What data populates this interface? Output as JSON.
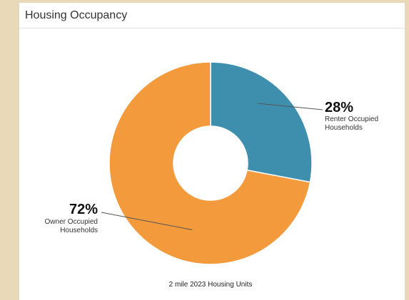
{
  "panel": {
    "title": "Housing Occupancy"
  },
  "chart_data": {
    "type": "pie",
    "donut": true,
    "caption": "2 mile 2023 Housing Units",
    "slices": [
      {
        "label_line1": "Renter Occupied",
        "label_line2": "Households",
        "value": 28,
        "value_label": "28%",
        "color": "#3e8fae"
      },
      {
        "label_line1": "Owner Occupied",
        "label_line2": "Households",
        "value": 72,
        "value_label": "72%",
        "color": "#f39a3c"
      }
    ]
  }
}
